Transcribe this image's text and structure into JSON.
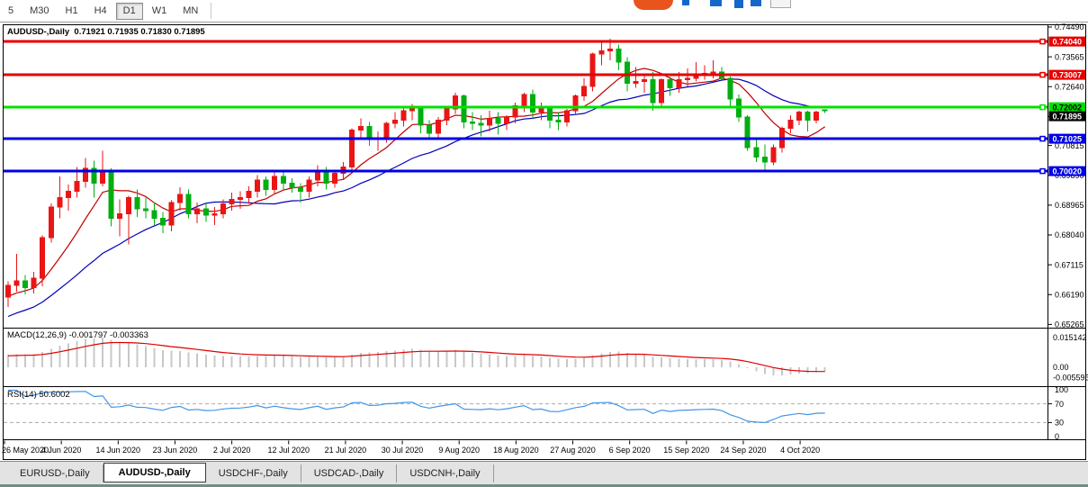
{
  "toolbar": {
    "timeframes": [
      "5",
      "M30",
      "H1",
      "H4",
      "D1",
      "W1",
      "MN"
    ],
    "active_timeframe": "D1"
  },
  "logo": {
    "orange": "#E8541C",
    "blue": "#1467C8"
  },
  "chart": {
    "header_line": "AUDUSD-,Daily  0.71921 0.71935 0.71830 0.71895",
    "macd_line": "MACD(12,26,9) -0.001797 -0.003363",
    "rsi_line": "RSI(14) 50.6002"
  },
  "chart_data": {
    "type": "candlestick",
    "symbol": "AUDUSD-",
    "period": "Daily",
    "ohlc": {
      "open": "0.71921",
      "high": "0.71935",
      "low": "0.71830",
      "close": "0.71895"
    },
    "up_color": "#EA1515",
    "down_color": "#00AE10",
    "y_axis_ticks": [
      "0.74490",
      "0.73565",
      "0.72640",
      "0.71715",
      "0.70815",
      "0.69890",
      "0.68965",
      "0.68040",
      "0.67115",
      "0.66190",
      "0.65265"
    ],
    "x_axis_ticks": [
      "26 May 2020",
      "4 Jun 2020",
      "14 Jun 2020",
      "23 Jun 2020",
      "2 Jul 2020",
      "12 Jul 2020",
      "21 Jul 2020",
      "30 Jul 2020",
      "9 Aug 2020",
      "18 Aug 2020",
      "27 Aug 2020",
      "6 Sep 2020",
      "15 Sep 2020",
      "24 Sep 2020",
      "4 Oct 2020"
    ],
    "price_lines": [
      {
        "price": 0.7404,
        "label": "0.74040",
        "color": "#E60000",
        "text_color": "#ffffff"
      },
      {
        "price": 0.73007,
        "label": "0.73007",
        "color": "#E60000",
        "text_color": "#ffffff"
      },
      {
        "price": 0.72002,
        "label": "0.72002",
        "color": "#00E100",
        "text_color": "#000000"
      },
      {
        "price": 0.71025,
        "label": "0.71025",
        "color": "#0000E6",
        "text_color": "#ffffff"
      },
      {
        "price": 0.7002,
        "label": "0.70020",
        "color": "#0000E6",
        "text_color": "#ffffff"
      }
    ],
    "current_price": {
      "value": 0.71895,
      "label": "0.71895"
    },
    "ma_fast_color": "#C00000",
    "ma_slow_color": "#0000B8",
    "macd": {
      "label": "MACD(12,26,9)",
      "main_value": "-0.001797",
      "signal_value": "-0.003363",
      "params": [
        12,
        26,
        9
      ],
      "axis_ticks": [
        "0.015142",
        "0.00",
        "-0.005595"
      ],
      "hist_color": "#C8C8C8",
      "signal_color": "#DE0000"
    },
    "rsi": {
      "label": "RSI(14)",
      "period": 14,
      "value": "50.6002",
      "axis_ticks": [
        "100",
        "70",
        "30",
        "0"
      ],
      "levels": [
        70,
        30
      ],
      "color": "#4296E8",
      "level_color": "#ABABAB"
    },
    "candles": [
      [
        0.6612,
        0.666,
        0.658,
        0.6648
      ],
      [
        0.6648,
        0.6745,
        0.6628,
        0.6662
      ],
      [
        0.6662,
        0.668,
        0.662,
        0.664
      ],
      [
        0.664,
        0.669,
        0.6622,
        0.667
      ],
      [
        0.667,
        0.6802,
        0.6645,
        0.6795
      ],
      [
        0.6795,
        0.6902,
        0.678,
        0.689
      ],
      [
        0.689,
        0.6985,
        0.6855,
        0.692
      ],
      [
        0.692,
        0.696,
        0.688,
        0.694
      ],
      [
        0.694,
        0.7015,
        0.692,
        0.697
      ],
      [
        0.697,
        0.7043,
        0.695,
        0.701
      ],
      [
        0.701,
        0.7035,
        0.692,
        0.6965
      ],
      [
        0.6965,
        0.7065,
        0.6955,
        0.7
      ],
      [
        0.7,
        0.701,
        0.683,
        0.6855
      ],
      [
        0.6855,
        0.6915,
        0.68,
        0.687
      ],
      [
        0.687,
        0.6925,
        0.6775,
        0.692
      ],
      [
        0.692,
        0.6945,
        0.686,
        0.6885
      ],
      [
        0.6885,
        0.692,
        0.6855,
        0.688
      ],
      [
        0.688,
        0.6905,
        0.6835,
        0.6855
      ],
      [
        0.6855,
        0.6875,
        0.681,
        0.6835
      ],
      [
        0.6835,
        0.6912,
        0.6815,
        0.6905
      ],
      [
        0.6905,
        0.6952,
        0.688,
        0.693
      ],
      [
        0.693,
        0.6945,
        0.6855,
        0.687
      ],
      [
        0.687,
        0.6905,
        0.684,
        0.6885
      ],
      [
        0.6885,
        0.69,
        0.6845,
        0.6865
      ],
      [
        0.6865,
        0.689,
        0.6835,
        0.687
      ],
      [
        0.687,
        0.6915,
        0.6855,
        0.69
      ],
      [
        0.69,
        0.6935,
        0.688,
        0.6915
      ],
      [
        0.6915,
        0.694,
        0.6885,
        0.692
      ],
      [
        0.692,
        0.6955,
        0.69,
        0.694
      ],
      [
        0.694,
        0.699,
        0.692,
        0.6975
      ],
      [
        0.6975,
        0.6985,
        0.6925,
        0.6945
      ],
      [
        0.6945,
        0.6998,
        0.693,
        0.6985
      ],
      [
        0.6985,
        0.7,
        0.6945,
        0.6965
      ],
      [
        0.6965,
        0.698,
        0.6935,
        0.695
      ],
      [
        0.695,
        0.6965,
        0.6905,
        0.694
      ],
      [
        0.694,
        0.6985,
        0.692,
        0.6975
      ],
      [
        0.6975,
        0.702,
        0.6955,
        0.7005
      ],
      [
        0.7005,
        0.7015,
        0.6945,
        0.6965
      ],
      [
        0.6965,
        0.7005,
        0.695,
        0.6995
      ],
      [
        0.6995,
        0.703,
        0.6975,
        0.7015
      ],
      [
        0.7015,
        0.7135,
        0.7,
        0.713
      ],
      [
        0.713,
        0.7165,
        0.7105,
        0.714
      ],
      [
        0.714,
        0.7155,
        0.708,
        0.71
      ],
      [
        0.71,
        0.7125,
        0.7065,
        0.7105
      ],
      [
        0.7105,
        0.7155,
        0.709,
        0.715
      ],
      [
        0.715,
        0.7185,
        0.7135,
        0.716
      ],
      [
        0.716,
        0.72,
        0.714,
        0.719
      ],
      [
        0.719,
        0.721,
        0.716,
        0.7195
      ],
      [
        0.7195,
        0.7205,
        0.712,
        0.7145
      ],
      [
        0.7145,
        0.716,
        0.71,
        0.712
      ],
      [
        0.712,
        0.717,
        0.7105,
        0.716
      ],
      [
        0.716,
        0.7205,
        0.7145,
        0.7195
      ],
      [
        0.7195,
        0.7245,
        0.718,
        0.7235
      ],
      [
        0.7235,
        0.724,
        0.7135,
        0.7155
      ],
      [
        0.7155,
        0.7185,
        0.713,
        0.715
      ],
      [
        0.715,
        0.7175,
        0.711,
        0.7145
      ],
      [
        0.7145,
        0.719,
        0.7125,
        0.7165
      ],
      [
        0.7165,
        0.7185,
        0.7115,
        0.715
      ],
      [
        0.715,
        0.7175,
        0.713,
        0.717
      ],
      [
        0.717,
        0.7215,
        0.715,
        0.7205
      ],
      [
        0.7205,
        0.7245,
        0.7185,
        0.724
      ],
      [
        0.724,
        0.7255,
        0.7165,
        0.7185
      ],
      [
        0.7185,
        0.7215,
        0.716,
        0.7195
      ],
      [
        0.7195,
        0.72,
        0.7135,
        0.716
      ],
      [
        0.716,
        0.7185,
        0.713,
        0.7155
      ],
      [
        0.7155,
        0.7195,
        0.714,
        0.719
      ],
      [
        0.719,
        0.724,
        0.7175,
        0.7235
      ],
      [
        0.7235,
        0.729,
        0.722,
        0.7265
      ],
      [
        0.7265,
        0.737,
        0.725,
        0.7365
      ],
      [
        0.7365,
        0.7405,
        0.733,
        0.7375
      ],
      [
        0.7375,
        0.7413,
        0.7345,
        0.738
      ],
      [
        0.738,
        0.7395,
        0.7315,
        0.734
      ],
      [
        0.734,
        0.7355,
        0.725,
        0.7275
      ],
      [
        0.7275,
        0.7325,
        0.726,
        0.728
      ],
      [
        0.728,
        0.73,
        0.7245,
        0.7285
      ],
      [
        0.7285,
        0.731,
        0.719,
        0.7215
      ],
      [
        0.7215,
        0.729,
        0.7205,
        0.7285
      ],
      [
        0.7285,
        0.7295,
        0.7235,
        0.726
      ],
      [
        0.726,
        0.731,
        0.7245,
        0.7285
      ],
      [
        0.7285,
        0.732,
        0.7265,
        0.729
      ],
      [
        0.729,
        0.734,
        0.728,
        0.73
      ],
      [
        0.73,
        0.733,
        0.7285,
        0.7305
      ],
      [
        0.7305,
        0.7345,
        0.729,
        0.731
      ],
      [
        0.731,
        0.7325,
        0.7285,
        0.729
      ],
      [
        0.729,
        0.7295,
        0.7205,
        0.7225
      ],
      [
        0.7225,
        0.724,
        0.7155,
        0.717
      ],
      [
        0.717,
        0.7175,
        0.7065,
        0.7075
      ],
      [
        0.7075,
        0.71,
        0.703,
        0.7045
      ],
      [
        0.7045,
        0.7085,
        0.7006,
        0.703
      ],
      [
        0.703,
        0.7085,
        0.702,
        0.7075
      ],
      [
        0.7075,
        0.714,
        0.706,
        0.7135
      ],
      [
        0.7135,
        0.7175,
        0.712,
        0.716
      ],
      [
        0.716,
        0.719,
        0.7145,
        0.7185
      ],
      [
        0.7185,
        0.719,
        0.7125,
        0.716
      ],
      [
        0.716,
        0.719,
        0.715,
        0.7185
      ],
      [
        0.71921,
        0.71935,
        0.7183,
        0.71895
      ]
    ]
  },
  "tabs": [
    {
      "label": "EURUSD-,Daily",
      "active": false
    },
    {
      "label": "AUDUSD-,Daily",
      "active": true
    },
    {
      "label": "USDCHF-,Daily",
      "active": false
    },
    {
      "label": "USDCAD-,Daily",
      "active": false
    },
    {
      "label": "USDCNH-,Daily",
      "active": false
    }
  ],
  "status_strip_color": "#6F8F85"
}
